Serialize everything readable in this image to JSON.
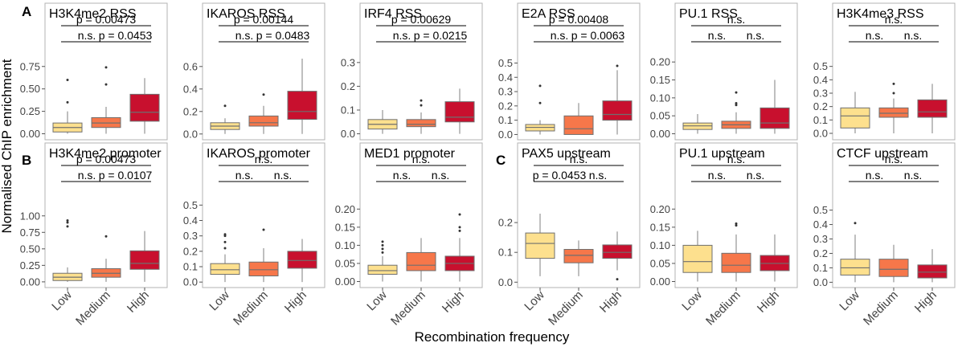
{
  "figure": {
    "ylabel": "Normalised ChIP enrichment",
    "xlabel": "Recombination frequency",
    "categories": [
      "Low",
      "Medium",
      "High"
    ],
    "colors": [
      "#fde08e",
      "#f6774a",
      "#c8102e"
    ],
    "panel_letters": [
      "A",
      "B",
      "C"
    ]
  },
  "chart_data": [
    {
      "type": "box",
      "title": "H3K4me2 RSS",
      "ylim": [
        -0.04,
        0.9
      ],
      "yticks": [
        0,
        0.25,
        0.5,
        0.75
      ],
      "ytick_labels": [
        "0.00",
        "0.25",
        "0.50",
        "0.75"
      ],
      "boxes": [
        {
          "q1": 0.02,
          "median": 0.07,
          "q3": 0.12,
          "whislo": 0.0,
          "whishi": 0.25,
          "outliers": [
            0.6,
            0.35
          ]
        },
        {
          "q1": 0.07,
          "median": 0.12,
          "q3": 0.18,
          "whislo": 0.0,
          "whishi": 0.3,
          "outliers": [
            0.74,
            0.55
          ]
        },
        {
          "q1": 0.14,
          "median": 0.24,
          "q3": 0.44,
          "whislo": 0.0,
          "whishi": 0.62,
          "outliers": []
        }
      ],
      "comparisons": [
        {
          "from": 0,
          "to": 2,
          "label": "p = 0.00473"
        },
        {
          "from": 0,
          "to": 1,
          "label": "n.s."
        },
        {
          "from": 1,
          "to": 2,
          "label": "p = 0.0453"
        }
      ]
    },
    {
      "type": "box",
      "title": "IKAROS RSS",
      "ylim": [
        -0.03,
        0.72
      ],
      "yticks": [
        0,
        0.2,
        0.4,
        0.6
      ],
      "ytick_labels": [
        "0.0",
        "0.2",
        "0.4",
        "0.6"
      ],
      "boxes": [
        {
          "q1": 0.04,
          "median": 0.07,
          "q3": 0.1,
          "whislo": 0.0,
          "whishi": 0.14,
          "outliers": [
            0.25
          ]
        },
        {
          "q1": 0.07,
          "median": 0.1,
          "q3": 0.16,
          "whislo": 0.0,
          "whishi": 0.25,
          "outliers": [
            0.35
          ]
        },
        {
          "q1": 0.13,
          "median": 0.2,
          "q3": 0.38,
          "whislo": 0.0,
          "whishi": 0.67,
          "outliers": []
        }
      ],
      "comparisons": [
        {
          "from": 0,
          "to": 2,
          "label": "p = 0.00144"
        },
        {
          "from": 0,
          "to": 1,
          "label": "n.s."
        },
        {
          "from": 1,
          "to": 2,
          "label": "p = 0.0483"
        }
      ]
    },
    {
      "type": "box",
      "title": "IRF4 RSS",
      "ylim": [
        -0.015,
        0.34
      ],
      "yticks": [
        0,
        0.1,
        0.2,
        0.3
      ],
      "ytick_labels": [
        "0.0",
        "0.1",
        "0.2",
        "0.3"
      ],
      "boxes": [
        {
          "q1": 0.02,
          "median": 0.04,
          "q3": 0.06,
          "whislo": 0.0,
          "whishi": 0.1,
          "outliers": []
        },
        {
          "q1": 0.03,
          "median": 0.04,
          "q3": 0.06,
          "whislo": 0.0,
          "whishi": 0.09,
          "outliers": [
            0.14,
            0.12
          ]
        },
        {
          "q1": 0.05,
          "median": 0.07,
          "q3": 0.135,
          "whislo": 0.0,
          "whishi": 0.19,
          "outliers": []
        }
      ],
      "comparisons": [
        {
          "from": 0,
          "to": 2,
          "label": "p = 0.00629"
        },
        {
          "from": 0,
          "to": 1,
          "label": "n.s."
        },
        {
          "from": 1,
          "to": 2,
          "label": "p = 0.0215"
        }
      ]
    },
    {
      "type": "box",
      "title": "E2A RSS",
      "ylim": [
        -0.02,
        0.57
      ],
      "yticks": [
        0,
        0.1,
        0.2,
        0.3,
        0.4,
        0.5
      ],
      "ytick_labels": [
        "0.0",
        "0.1",
        "0.2",
        "0.3",
        "0.4",
        "0.5"
      ],
      "boxes": [
        {
          "q1": 0.025,
          "median": 0.05,
          "q3": 0.07,
          "whislo": 0.0,
          "whishi": 0.1,
          "outliers": [
            0.34,
            0.22
          ]
        },
        {
          "q1": 0.0,
          "median": 0.04,
          "q3": 0.13,
          "whislo": 0.0,
          "whishi": 0.22,
          "outliers": []
        },
        {
          "q1": 0.1,
          "median": 0.14,
          "q3": 0.235,
          "whislo": 0.0,
          "whishi": 0.45,
          "outliers": [
            0.48
          ]
        }
      ],
      "comparisons": [
        {
          "from": 0,
          "to": 2,
          "label": "p = 0.00408"
        },
        {
          "from": 0,
          "to": 1,
          "label": "n.s."
        },
        {
          "from": 1,
          "to": 2,
          "label": "p = 0.0063"
        }
      ]
    },
    {
      "type": "box",
      "title": "PU.1 RSS",
      "ylim": [
        -0.01,
        0.225
      ],
      "yticks": [
        0,
        0.05,
        0.1,
        0.15,
        0.2
      ],
      "ytick_labels": [
        "0.00",
        "0.05",
        "0.10",
        "0.15",
        "0.20"
      ],
      "boxes": [
        {
          "q1": 0.012,
          "median": 0.022,
          "q3": 0.03,
          "whislo": 0.0,
          "whishi": 0.055,
          "outliers": []
        },
        {
          "q1": 0.015,
          "median": 0.025,
          "q3": 0.035,
          "whislo": 0.0,
          "whishi": 0.06,
          "outliers": [
            0.115,
            0.085,
            0.08
          ]
        },
        {
          "q1": 0.015,
          "median": 0.03,
          "q3": 0.072,
          "whislo": 0.0,
          "whishi": 0.15,
          "outliers": []
        }
      ],
      "comparisons": [
        {
          "from": 0,
          "to": 2,
          "label": "n.s."
        },
        {
          "from": 0,
          "to": 1,
          "label": "n.s."
        },
        {
          "from": 1,
          "to": 2,
          "label": "n.s."
        }
      ]
    },
    {
      "type": "box",
      "title": "H3K4me3 RSS",
      "ylim": [
        -0.03,
        0.6
      ],
      "yticks": [
        0,
        0.1,
        0.2,
        0.3,
        0.4,
        0.5
      ],
      "ytick_labels": [
        "0.0",
        "0.1",
        "0.2",
        "0.3",
        "0.4",
        "0.5"
      ],
      "boxes": [
        {
          "q1": 0.04,
          "median": 0.13,
          "q3": 0.19,
          "whislo": 0.0,
          "whishi": 0.31,
          "outliers": []
        },
        {
          "q1": 0.12,
          "median": 0.15,
          "q3": 0.19,
          "whislo": 0.0,
          "whishi": 0.26,
          "outliers": [
            0.37,
            0.3
          ]
        },
        {
          "q1": 0.12,
          "median": 0.16,
          "q3": 0.25,
          "whislo": 0.0,
          "whishi": 0.37,
          "outliers": []
        }
      ],
      "comparisons": [
        {
          "from": 0,
          "to": 2,
          "label": "n.s."
        },
        {
          "from": 0,
          "to": 1,
          "label": "n.s."
        },
        {
          "from": 1,
          "to": 2,
          "label": "n.s."
        }
      ]
    },
    {
      "type": "box",
      "title": "H3K4me2 promoter",
      "ylim": [
        -0.05,
        1.35
      ],
      "yticks": [
        0,
        0.25,
        0.5,
        0.75,
        1.0
      ],
      "ytick_labels": [
        "0.00",
        "0.25",
        "0.50",
        "0.75",
        "1.00"
      ],
      "boxes": [
        {
          "q1": 0.02,
          "median": 0.07,
          "q3": 0.13,
          "whislo": 0.0,
          "whishi": 0.22,
          "outliers": [
            0.93,
            0.9,
            0.84
          ]
        },
        {
          "q1": 0.07,
          "median": 0.13,
          "q3": 0.2,
          "whislo": 0.0,
          "whishi": 0.35,
          "outliers": [
            0.69
          ]
        },
        {
          "q1": 0.19,
          "median": 0.28,
          "q3": 0.47,
          "whislo": 0.0,
          "whishi": 0.77,
          "outliers": []
        }
      ],
      "comparisons": [
        {
          "from": 0,
          "to": 2,
          "label": "p = 0.00473"
        },
        {
          "from": 0,
          "to": 1,
          "label": "n.s."
        },
        {
          "from": 1,
          "to": 2,
          "label": "p = 0.0107"
        }
      ]
    },
    {
      "type": "box",
      "title": "IKAROS promoter",
      "ylim": [
        -0.02,
        0.58
      ],
      "yticks": [
        0,
        0.1,
        0.2,
        0.3,
        0.4,
        0.5
      ],
      "ytick_labels": [
        "0.0",
        "0.1",
        "0.2",
        "0.3",
        "0.4",
        "0.5"
      ],
      "boxes": [
        {
          "q1": 0.05,
          "median": 0.08,
          "q3": 0.12,
          "whislo": 0.0,
          "whishi": 0.18,
          "outliers": [
            0.31,
            0.3,
            0.26,
            0.22
          ]
        },
        {
          "q1": 0.04,
          "median": 0.08,
          "q3": 0.13,
          "whislo": 0.0,
          "whishi": 0.22,
          "outliers": [
            0.34
          ]
        },
        {
          "q1": 0.09,
          "median": 0.14,
          "q3": 0.2,
          "whislo": 0.0,
          "whishi": 0.28,
          "outliers": []
        }
      ],
      "comparisons": [
        {
          "from": 0,
          "to": 2,
          "label": "n.s."
        },
        {
          "from": 0,
          "to": 1,
          "label": "n.s."
        },
        {
          "from": 1,
          "to": 2,
          "label": "n.s."
        }
      ]
    },
    {
      "type": "box",
      "title": "MED1 promoter",
      "ylim": [
        -0.01,
        0.245
      ],
      "yticks": [
        0,
        0.05,
        0.1,
        0.15,
        0.2
      ],
      "ytick_labels": [
        "0.00",
        "0.05",
        "0.10",
        "0.15",
        "0.20"
      ],
      "boxes": [
        {
          "q1": 0.02,
          "median": 0.03,
          "q3": 0.045,
          "whislo": 0.0,
          "whishi": 0.07,
          "outliers": [
            0.11,
            0.1,
            0.09,
            0.08
          ]
        },
        {
          "q1": 0.03,
          "median": 0.045,
          "q3": 0.08,
          "whislo": 0.0,
          "whishi": 0.12,
          "outliers": []
        },
        {
          "q1": 0.03,
          "median": 0.05,
          "q3": 0.07,
          "whislo": 0.0,
          "whishi": 0.12,
          "outliers": [
            0.185,
            0.15,
            0.14
          ]
        }
      ],
      "comparisons": [
        {
          "from": 0,
          "to": 2,
          "label": "n.s."
        },
        {
          "from": 0,
          "to": 1,
          "label": "n.s."
        },
        {
          "from": 1,
          "to": 2,
          "label": "n.s."
        }
      ]
    },
    {
      "type": "box",
      "title": "PAX5 upstream",
      "ylim": [
        -0.01,
        0.3
      ],
      "yticks": [
        0,
        0.1,
        0.2
      ],
      "ytick_labels": [
        "0.0",
        "0.1",
        "0.2"
      ],
      "boxes": [
        {
          "q1": 0.08,
          "median": 0.13,
          "q3": 0.165,
          "whislo": 0.02,
          "whishi": 0.23,
          "outliers": []
        },
        {
          "q1": 0.065,
          "median": 0.09,
          "q3": 0.11,
          "whislo": 0.02,
          "whishi": 0.14,
          "outliers": []
        },
        {
          "q1": 0.08,
          "median": 0.1,
          "q3": 0.125,
          "whislo": 0.04,
          "whishi": 0.17,
          "outliers": [
            0.01
          ]
        }
      ],
      "comparisons": [
        {
          "from": 0,
          "to": 2,
          "label": "n.s."
        },
        {
          "from": 0,
          "to": 1,
          "label": "p = 0.0453"
        },
        {
          "from": 1,
          "to": 2,
          "label": "n.s."
        }
      ]
    },
    {
      "type": "box",
      "title": "PU.1 upstream",
      "ylim": [
        -0.01,
        0.245
      ],
      "yticks": [
        0,
        0.05,
        0.1,
        0.15,
        0.2
      ],
      "ytick_labels": [
        "0.00",
        "0.05",
        "0.10",
        "0.15",
        "0.20"
      ],
      "boxes": [
        {
          "q1": 0.025,
          "median": 0.055,
          "q3": 0.1,
          "whislo": 0.0,
          "whishi": 0.14,
          "outliers": []
        },
        {
          "q1": 0.025,
          "median": 0.045,
          "q3": 0.078,
          "whislo": 0.0,
          "whishi": 0.13,
          "outliers": [
            0.16,
            0.155
          ]
        },
        {
          "q1": 0.03,
          "median": 0.05,
          "q3": 0.072,
          "whislo": 0.0,
          "whishi": 0.13,
          "outliers": []
        }
      ],
      "comparisons": [
        {
          "from": 0,
          "to": 2,
          "label": "n.s."
        },
        {
          "from": 0,
          "to": 1,
          "label": "n.s."
        },
        {
          "from": 1,
          "to": 2,
          "label": "n.s."
        }
      ]
    },
    {
      "type": "box",
      "title": "CTCF upstream",
      "ylim": [
        -0.02,
        0.62
      ],
      "yticks": [
        0,
        0.1,
        0.2,
        0.3,
        0.4,
        0.5
      ],
      "ytick_labels": [
        "0.0",
        "0.1",
        "0.2",
        "0.3",
        "0.4",
        "0.5"
      ],
      "boxes": [
        {
          "q1": 0.05,
          "median": 0.1,
          "q3": 0.16,
          "whislo": 0.0,
          "whishi": 0.33,
          "outliers": [
            0.41
          ]
        },
        {
          "q1": 0.04,
          "median": 0.09,
          "q3": 0.16,
          "whislo": 0.0,
          "whishi": 0.26,
          "outliers": []
        },
        {
          "q1": 0.03,
          "median": 0.07,
          "q3": 0.12,
          "whislo": 0.0,
          "whishi": 0.23,
          "outliers": []
        }
      ],
      "comparisons": [
        {
          "from": 0,
          "to": 2,
          "label": "n.s."
        },
        {
          "from": 0,
          "to": 1,
          "label": "n.s."
        },
        {
          "from": 1,
          "to": 2,
          "label": "n.s."
        }
      ]
    }
  ]
}
